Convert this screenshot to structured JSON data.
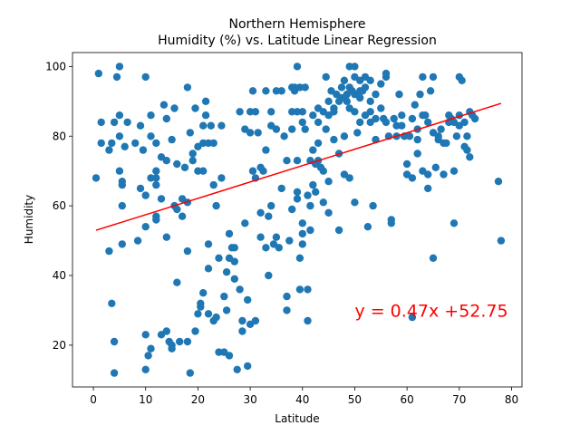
{
  "chart_data": {
    "type": "scatter",
    "title_line1": "Northern Hemisphere",
    "title_line2": "Humidity (%) vs. Latitude Linear Regression",
    "xlabel": "Latitude",
    "ylabel": "Humidity",
    "xlim": [
      -4,
      82
    ],
    "ylim": [
      8,
      104
    ],
    "xticks": [
      0,
      10,
      20,
      30,
      40,
      50,
      60,
      70,
      80
    ],
    "yticks": [
      20,
      40,
      60,
      80,
      100
    ],
    "grid": false,
    "marker_color": "#1f77b4",
    "line_color": "#ff0000",
    "annotation": {
      "text": "y = 0.47x +52.75",
      "x": 50,
      "y": 30,
      "color": "#ff0000"
    },
    "regression": {
      "slope": 0.47,
      "intercept": 52.75,
      "x_range": [
        0.5,
        78
      ]
    },
    "points": [
      [
        1,
        98
      ],
      [
        1.5,
        84
      ],
      [
        1.5,
        78
      ],
      [
        0.5,
        68
      ],
      [
        3,
        47
      ],
      [
        3,
        76
      ],
      [
        3.5,
        78
      ],
      [
        3.5,
        32
      ],
      [
        4,
        84
      ],
      [
        4,
        21
      ],
      [
        4,
        12
      ],
      [
        4.5,
        97
      ],
      [
        5,
        100
      ],
      [
        5,
        86
      ],
      [
        5,
        80
      ],
      [
        5,
        70
      ],
      [
        5.5,
        66
      ],
      [
        5.5,
        67
      ],
      [
        5.5,
        60
      ],
      [
        5.5,
        49
      ],
      [
        6,
        77
      ],
      [
        6.5,
        84
      ],
      [
        8,
        78
      ],
      [
        8.5,
        50
      ],
      [
        9,
        83
      ],
      [
        9,
        65
      ],
      [
        9.5,
        76
      ],
      [
        10,
        97
      ],
      [
        10,
        63
      ],
      [
        10,
        54
      ],
      [
        10,
        13
      ],
      [
        10,
        23
      ],
      [
        10.5,
        17
      ],
      [
        11,
        86
      ],
      [
        11,
        80
      ],
      [
        11,
        68
      ],
      [
        11,
        19
      ],
      [
        12,
        70
      ],
      [
        12,
        57
      ],
      [
        12,
        56
      ],
      [
        12,
        66
      ],
      [
        12,
        68
      ],
      [
        12,
        78
      ],
      [
        13,
        23
      ],
      [
        13,
        74
      ],
      [
        13,
        62
      ],
      [
        13.5,
        89
      ],
      [
        14,
        85
      ],
      [
        14,
        73
      ],
      [
        14,
        51
      ],
      [
        14,
        24
      ],
      [
        14.5,
        21
      ],
      [
        15,
        19
      ],
      [
        15,
        20
      ],
      [
        15,
        79
      ],
      [
        15.5,
        88
      ],
      [
        15.5,
        60
      ],
      [
        16,
        38
      ],
      [
        16,
        72
      ],
      [
        16,
        59
      ],
      [
        16.5,
        21
      ],
      [
        17,
        62
      ],
      [
        17,
        57
      ],
      [
        17.5,
        71
      ],
      [
        18,
        94
      ],
      [
        18,
        61
      ],
      [
        18,
        47
      ],
      [
        18,
        21
      ],
      [
        18.5,
        81
      ],
      [
        18.5,
        12
      ],
      [
        19,
        75
      ],
      [
        19,
        73
      ],
      [
        19.5,
        24
      ],
      [
        19.5,
        88
      ],
      [
        20,
        70
      ],
      [
        20,
        77
      ],
      [
        20,
        29
      ],
      [
        20.5,
        31
      ],
      [
        20.5,
        32
      ],
      [
        21,
        35
      ],
      [
        21,
        83
      ],
      [
        21,
        78
      ],
      [
        21,
        70
      ],
      [
        21.5,
        86
      ],
      [
        21.5,
        90
      ],
      [
        22,
        42
      ],
      [
        22,
        49
      ],
      [
        22,
        78
      ],
      [
        22,
        29
      ],
      [
        22.5,
        83
      ],
      [
        23,
        78
      ],
      [
        23,
        27
      ],
      [
        23,
        66
      ],
      [
        23.5,
        60
      ],
      [
        23.5,
        28
      ],
      [
        24,
        45
      ],
      [
        24,
        18
      ],
      [
        24.5,
        83
      ],
      [
        24.5,
        68
      ],
      [
        25,
        34
      ],
      [
        25,
        18
      ],
      [
        25.5,
        41
      ],
      [
        25.5,
        30
      ],
      [
        26,
        45
      ],
      [
        26,
        52
      ],
      [
        26,
        17
      ],
      [
        26.5,
        48
      ],
      [
        27,
        39
      ],
      [
        27,
        48
      ],
      [
        27,
        44
      ],
      [
        27.5,
        13
      ],
      [
        28,
        36
      ],
      [
        28,
        87
      ],
      [
        28.5,
        27
      ],
      [
        28.5,
        24
      ],
      [
        29,
        55
      ],
      [
        29,
        82
      ],
      [
        29.5,
        33
      ],
      [
        29.5,
        14
      ],
      [
        30,
        87
      ],
      [
        30,
        81
      ],
      [
        30,
        26
      ],
      [
        30.5,
        70
      ],
      [
        30.5,
        93
      ],
      [
        31,
        68
      ],
      [
        31,
        87
      ],
      [
        31,
        27
      ],
      [
        31.5,
        81
      ],
      [
        32,
        58
      ],
      [
        32,
        71
      ],
      [
        32,
        51
      ],
      [
        32.5,
        70
      ],
      [
        33,
        93
      ],
      [
        33,
        48
      ],
      [
        33,
        76
      ],
      [
        33.5,
        57
      ],
      [
        33.5,
        40
      ],
      [
        34,
        83
      ],
      [
        34,
        87
      ],
      [
        34,
        60
      ],
      [
        34.5,
        49
      ],
      [
        35,
        51
      ],
      [
        35,
        93
      ],
      [
        35,
        82
      ],
      [
        35.5,
        48
      ],
      [
        36,
        93
      ],
      [
        36,
        65
      ],
      [
        36.5,
        80
      ],
      [
        37,
        34
      ],
      [
        37,
        30
      ],
      [
        37,
        73
      ],
      [
        37.5,
        50
      ],
      [
        38,
        94
      ],
      [
        38,
        87
      ],
      [
        38,
        82
      ],
      [
        38,
        59
      ],
      [
        38.5,
        93
      ],
      [
        38.5,
        94
      ],
      [
        39,
        100
      ],
      [
        39,
        73
      ],
      [
        39,
        87
      ],
      [
        39,
        64
      ],
      [
        39,
        62
      ],
      [
        39.5,
        94
      ],
      [
        39.5,
        45
      ],
      [
        39.5,
        36
      ],
      [
        40,
        87
      ],
      [
        40,
        55
      ],
      [
        40,
        49
      ],
      [
        40,
        84
      ],
      [
        40,
        52
      ],
      [
        40.5,
        94
      ],
      [
        40.5,
        82
      ],
      [
        41,
        63
      ],
      [
        41,
        36
      ],
      [
        41,
        27
      ],
      [
        41.5,
        53
      ],
      [
        41.5,
        73
      ],
      [
        41.5,
        60
      ],
      [
        42,
        76
      ],
      [
        42,
        86
      ],
      [
        42,
        66
      ],
      [
        42.5,
        64
      ],
      [
        42.5,
        72
      ],
      [
        43,
        73
      ],
      [
        43,
        84
      ],
      [
        43,
        88
      ],
      [
        43,
        78
      ],
      [
        43.5,
        71
      ],
      [
        44,
        87
      ],
      [
        44,
        70
      ],
      [
        44,
        61
      ],
      [
        44.5,
        97
      ],
      [
        44.5,
        82
      ],
      [
        45,
        90
      ],
      [
        45,
        86
      ],
      [
        45,
        67
      ],
      [
        45,
        58
      ],
      [
        45.5,
        93
      ],
      [
        46,
        88
      ],
      [
        46,
        87
      ],
      [
        46,
        79
      ],
      [
        46.5,
        92
      ],
      [
        47,
        90
      ],
      [
        47,
        75
      ],
      [
        47,
        53
      ],
      [
        47.5,
        94
      ],
      [
        47.5,
        91
      ],
      [
        48,
        96
      ],
      [
        48,
        80
      ],
      [
        48,
        69
      ],
      [
        48.5,
        92
      ],
      [
        48.5,
        90
      ],
      [
        49,
        100
      ],
      [
        49,
        94
      ],
      [
        49,
        88
      ],
      [
        49,
        68
      ],
      [
        49.5,
        93
      ],
      [
        50,
        100
      ],
      [
        50,
        97
      ],
      [
        50,
        92
      ],
      [
        50,
        87
      ],
      [
        50,
        61
      ],
      [
        50.5,
        81
      ],
      [
        51,
        96
      ],
      [
        51,
        93
      ],
      [
        51,
        91
      ],
      [
        51,
        84
      ],
      [
        51.5,
        93
      ],
      [
        52,
        97
      ],
      [
        52,
        94
      ],
      [
        52,
        86
      ],
      [
        52.5,
        54
      ],
      [
        53,
        96
      ],
      [
        53,
        90
      ],
      [
        53,
        87
      ],
      [
        53,
        84
      ],
      [
        53.5,
        60
      ],
      [
        54,
        92
      ],
      [
        54,
        85
      ],
      [
        54,
        79
      ],
      [
        55,
        95
      ],
      [
        55,
        88
      ],
      [
        55.5,
        85
      ],
      [
        56,
        97
      ],
      [
        56,
        98
      ],
      [
        56,
        84
      ],
      [
        56.5,
        80
      ],
      [
        57,
        56
      ],
      [
        57,
        55
      ],
      [
        57.5,
        85
      ],
      [
        58,
        80
      ],
      [
        58,
        83
      ],
      [
        58.5,
        92
      ],
      [
        59,
        86
      ],
      [
        59,
        83
      ],
      [
        59.5,
        80
      ],
      [
        60,
        72
      ],
      [
        60,
        69
      ],
      [
        60.5,
        80
      ],
      [
        61,
        28
      ],
      [
        61,
        85
      ],
      [
        61,
        68
      ],
      [
        61.5,
        89
      ],
      [
        62,
        82
      ],
      [
        62,
        79
      ],
      [
        62,
        75
      ],
      [
        62.5,
        92
      ],
      [
        63,
        97
      ],
      [
        63,
        86
      ],
      [
        63,
        70
      ],
      [
        63.5,
        86
      ],
      [
        64,
        84
      ],
      [
        64,
        65
      ],
      [
        64,
        69
      ],
      [
        64.5,
        93
      ],
      [
        65,
        97
      ],
      [
        65,
        45
      ],
      [
        65,
        81
      ],
      [
        65.5,
        71
      ],
      [
        66,
        80
      ],
      [
        66,
        79
      ],
      [
        66.5,
        82
      ],
      [
        67,
        78
      ],
      [
        67,
        69
      ],
      [
        67.5,
        78
      ],
      [
        68,
        84
      ],
      [
        68,
        86
      ],
      [
        68.5,
        85
      ],
      [
        69,
        84
      ],
      [
        69,
        55
      ],
      [
        69,
        70
      ],
      [
        69.5,
        80
      ],
      [
        70,
        86
      ],
      [
        70,
        97
      ],
      [
        70,
        83
      ],
      [
        70.5,
        96
      ],
      [
        71,
        84
      ],
      [
        71,
        77
      ],
      [
        71.5,
        80
      ],
      [
        71.5,
        76
      ],
      [
        72,
        87
      ],
      [
        72,
        74
      ],
      [
        72.5,
        86
      ],
      [
        73,
        85
      ],
      [
        77.5,
        67
      ],
      [
        78,
        50
      ]
    ]
  }
}
